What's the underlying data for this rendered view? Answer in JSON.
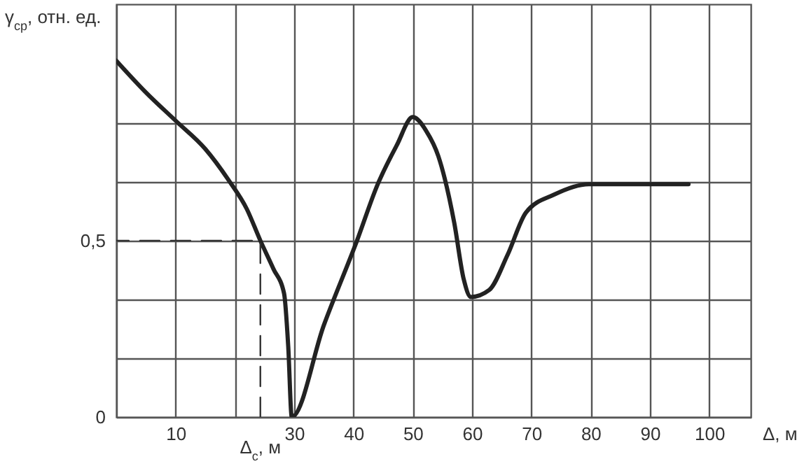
{
  "chart_data": {
    "type": "line",
    "xlabel": "Δ, м",
    "ylabel": "γ$_{ср}$, отн. ед.",
    "series": [
      {
        "color": "#222222",
        "x": [
          0,
          5,
          10,
          15,
          19,
          22,
          24.3,
          26.5,
          28.3,
          29,
          29.6,
          35,
          40.6,
          44.1,
          47.3,
          50,
          52.3,
          54.3,
          57,
          58.6,
          59.8,
          62.9,
          66,
          69.1,
          73.8,
          79.7,
          85.5,
          96.5
        ],
        "values": [
          1.01,
          0.92,
          0.84,
          0.76,
          0.67,
          0.59,
          0.5,
          0.42,
          0.35,
          0.2,
          0,
          0.26,
          0.5,
          0.66,
          0.77,
          0.85,
          0.81,
          0.74,
          0.55,
          0.39,
          0.34,
          0.36,
          0.46,
          0.58,
          0.63,
          0.66,
          0.66,
          0.66
        ]
      },
      {
        "type": "line",
        "line_style": "dashed",
        "color": "#333333",
        "x": [
          24.3,
          24.3,
          0
        ],
        "values": [
          0,
          0.5,
          0.5
        ]
      }
    ],
    "xlim": [
      0,
      107
    ],
    "ylim": [
      0,
      1.17
    ],
    "xticks": [
      {
        "value": 0,
        "label": null
      },
      10,
      {
        "value": 20,
        "label": null
      },
      30,
      40,
      50,
      60,
      70,
      80,
      90,
      100
    ],
    "yticks": [
      {
        "value": 0,
        "label": "0"
      },
      {
        "value": 0.1667,
        "label": null
      },
      {
        "value": 0.3333,
        "label": null
      },
      {
        "value": 0.5,
        "label": "0,5"
      },
      {
        "value": 0.6667,
        "label": null
      },
      {
        "value": 0.8333,
        "label": null
      }
    ],
    "grid": true,
    "line_style": "solid",
    "marker": "none",
    "annotations": [
      {
        "text": "Δ$_{с}$, м",
        "x": 24.3,
        "y": 0
      }
    ]
  }
}
